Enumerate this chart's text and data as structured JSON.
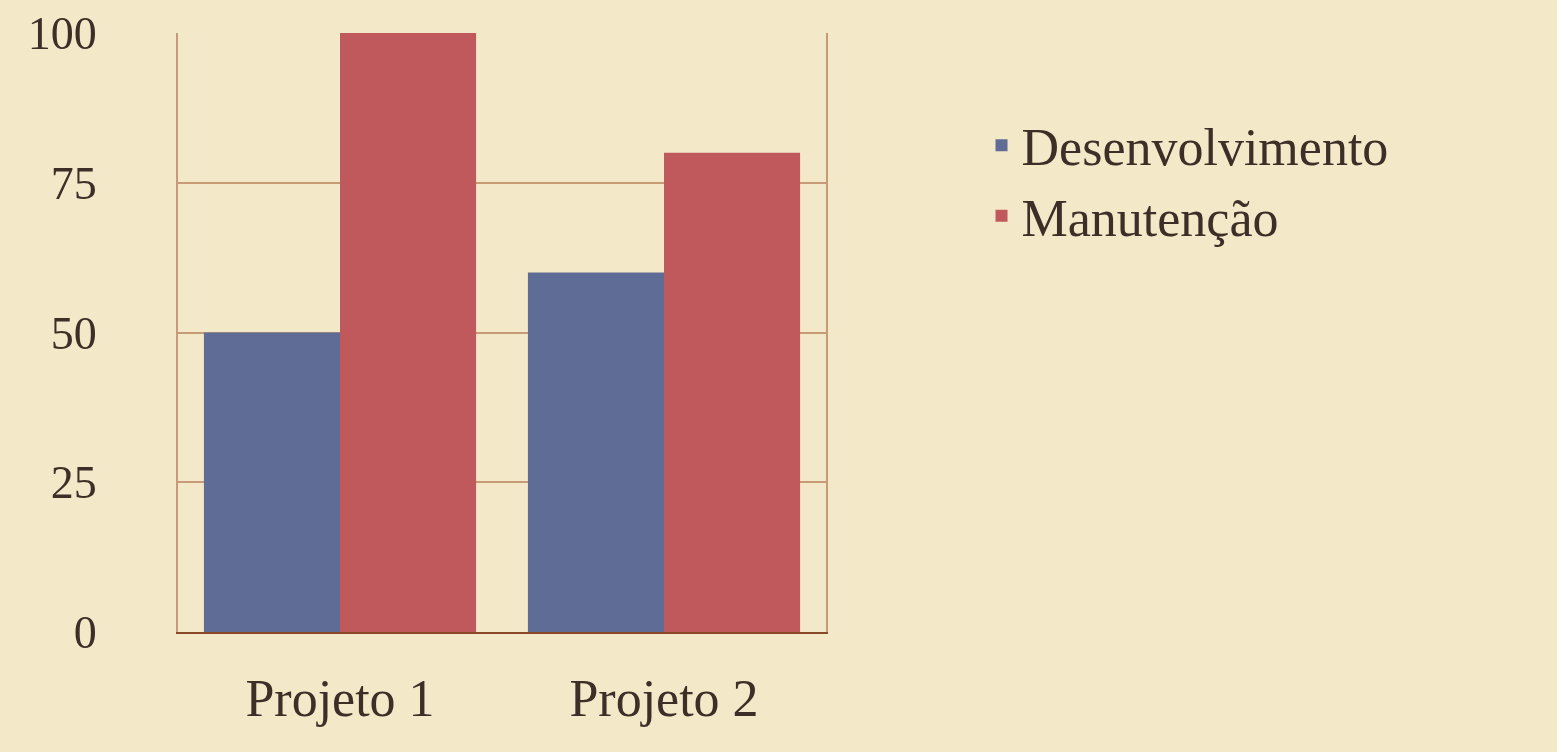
{
  "chart_data": {
    "type": "bar",
    "categories": [
      "Projeto 1",
      "Projeto 2"
    ],
    "series": [
      {
        "name": "Desenvolvimento",
        "color": "#5f6d96",
        "values": [
          50,
          60
        ]
      },
      {
        "name": "Manutenção",
        "color": "#c0595b",
        "values": [
          100,
          80
        ]
      }
    ],
    "ylim": [
      0,
      100
    ],
    "yticks": [
      0,
      25,
      50,
      75,
      100
    ],
    "grid": "y",
    "legend": "top right"
  }
}
